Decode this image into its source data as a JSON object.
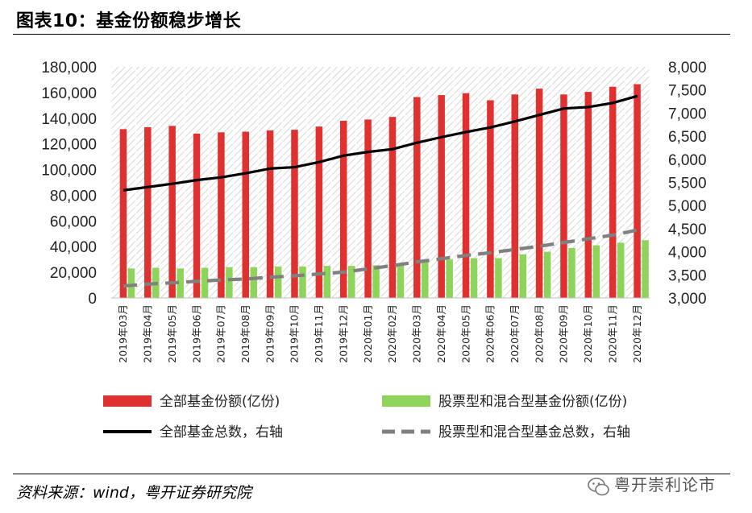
{
  "figure": {
    "title": "图表10：基金份额稳步增长",
    "source_label": "资料来源：",
    "source_value": "wind，粤开证券研究院",
    "watermark": "粤开崇利论市"
  },
  "colors": {
    "red": "#e03131",
    "green": "#8fd45a",
    "black": "#000000",
    "gray": "#808080",
    "hatch": "#d9d9d9"
  },
  "chart_data": {
    "type": "bar",
    "title": "基金份额稳步增长",
    "categories": [
      "2019年03月",
      "2019年04月",
      "2019年05月",
      "2019年06月",
      "2019年07月",
      "2019年08月",
      "2019年09月",
      "2019年10月",
      "2019年11月",
      "2019年12月",
      "2020年01月",
      "2020年02月",
      "2020年03月",
      "2020年04月",
      "2020年05月",
      "2020年06月",
      "2020年07月",
      "2020年08月",
      "2020年09月",
      "2020年10月",
      "2020年11月",
      "2020年12月"
    ],
    "y_left": {
      "min": 0,
      "max": 180000,
      "step": 20000,
      "ticks": [
        "0",
        "20,000",
        "40,000",
        "60,000",
        "80,000",
        "100,000",
        "120,000",
        "140,000",
        "160,000",
        "180,000"
      ]
    },
    "y_right": {
      "min": 3000,
      "max": 8000,
      "step": 500,
      "ticks": [
        "3,000",
        "3,500",
        "4,000",
        "4,500",
        "5,000",
        "5,500",
        "6,000",
        "6,500",
        "7,000",
        "7,500",
        "8,000"
      ]
    },
    "series": [
      {
        "name": "全部基金份额(亿份)",
        "type": "bar",
        "axis": "left",
        "color": "#e03131",
        "values": [
          131500,
          133000,
          134000,
          128000,
          129000,
          129500,
          130500,
          131000,
          133500,
          138000,
          139000,
          141000,
          156500,
          158000,
          159500,
          154000,
          158500,
          163000,
          158500,
          160500,
          164500,
          166500
        ]
      },
      {
        "name": "股票型和混合型基金份额(亿份)",
        "type": "bar",
        "axis": "left",
        "color": "#8fd45a",
        "values": [
          23000,
          23500,
          23000,
          23500,
          24000,
          24000,
          24500,
          24500,
          25000,
          25000,
          25500,
          26000,
          28000,
          30000,
          31000,
          31000,
          34000,
          36000,
          39000,
          41000,
          43000,
          45000
        ]
      },
      {
        "name": "全部基金总数，右轴",
        "type": "line",
        "axis": "right",
        "color": "#000000",
        "dash": "solid",
        "values": [
          5330,
          5400,
          5470,
          5550,
          5610,
          5700,
          5800,
          5830,
          5940,
          6080,
          6160,
          6220,
          6360,
          6480,
          6590,
          6690,
          6820,
          6960,
          7100,
          7130,
          7220,
          7370
        ]
      },
      {
        "name": "股票型和混合型基金总数，右轴",
        "type": "line",
        "axis": "right",
        "color": "#808080",
        "dash": "dashed",
        "values": [
          3260,
          3300,
          3330,
          3360,
          3390,
          3410,
          3450,
          3480,
          3520,
          3560,
          3630,
          3700,
          3780,
          3850,
          3920,
          3980,
          4050,
          4120,
          4200,
          4280,
          4360,
          4470
        ]
      }
    ],
    "legend_position": "bottom",
    "grid": false,
    "background": "diagonal hatch"
  }
}
